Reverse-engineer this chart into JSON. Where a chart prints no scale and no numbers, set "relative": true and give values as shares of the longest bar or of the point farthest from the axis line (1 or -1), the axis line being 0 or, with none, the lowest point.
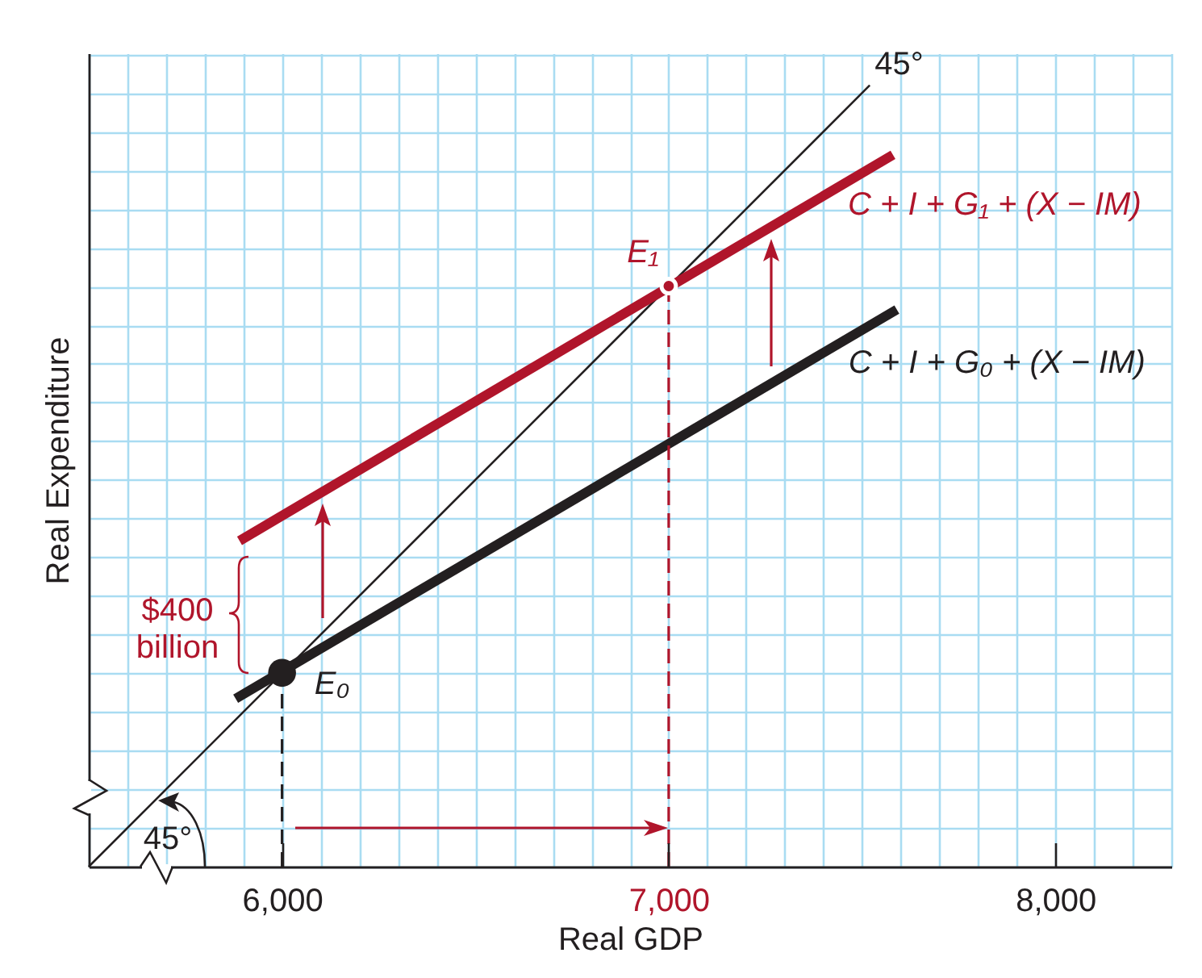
{
  "chart_data": {
    "type": "line",
    "xlabel": "Real GDP",
    "ylabel": "Real Expenditure",
    "relative": true,
    "grid": true,
    "tick_labels": "x",
    "xlim": [
      5500,
      8300
    ],
    "xticks": [
      {
        "value": 6000,
        "label": "6,000"
      },
      {
        "value": 7000,
        "label": "7,000"
      },
      {
        "value": 8000,
        "label": "8,000"
      }
    ],
    "series": [
      {
        "name": "45°",
        "color": "#231f20",
        "x": [
          5500,
          7520
        ],
        "values": [
          0,
          1
        ]
      },
      {
        "name": "C + I + G₁ + (X − IM)",
        "color": "#b0152b",
        "x": [
          5890,
          7580
        ],
        "values": [
          0.417,
          0.911
        ]
      },
      {
        "name": "C + I + G₀ + (X − IM)",
        "color": "#231f20",
        "x": [
          5880,
          7590
        ],
        "values": [
          0.215,
          0.713
        ]
      },
      {
        "type": "line",
        "line_style": "dashed",
        "color": "#231f20",
        "x": [
          6000,
          6000
        ],
        "values": [
          0,
          0.248
        ]
      },
      {
        "type": "line",
        "line_style": "dashed",
        "color": "#b0152b",
        "x": [
          7000,
          7000
        ],
        "values": [
          0,
          0.743
        ]
      },
      {
        "type": "scatter",
        "marker": "circle",
        "color": "#231f20",
        "x": [
          6000
        ],
        "values": [
          0.248
        ]
      },
      {
        "type": "scatter",
        "marker": "circle",
        "color": "#b0152b",
        "x": [
          7000
        ],
        "values": [
          0.743
        ]
      }
    ],
    "annotations": [
      "$400 billion",
      "45°",
      {
        "text": "E₀",
        "x": 6000,
        "y": 0.248
      },
      {
        "text": "E₁",
        "x": 7000,
        "y": 0.743
      }
    ]
  }
}
